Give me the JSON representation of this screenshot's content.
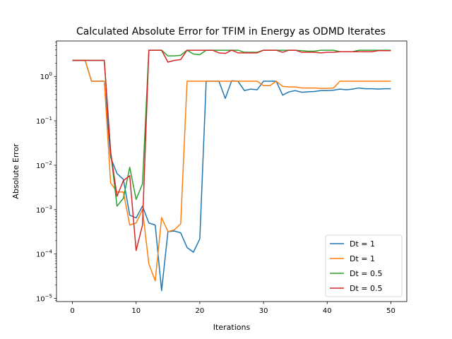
{
  "chart_data": {
    "type": "line",
    "title": "Calculated Absolute Error for TFIM in Energy as ODMD Iterates",
    "xlabel": "Iterations",
    "ylabel": "Absolute Error",
    "yscale": "log",
    "xlim": [
      -2.5,
      52.5
    ],
    "ylim": [
      8.5e-06,
      6.3
    ],
    "xticks": [
      0,
      10,
      20,
      30,
      40,
      50
    ],
    "yticks": [
      {
        "value": 1e-05,
        "base": "10",
        "exp": "−5"
      },
      {
        "value": 0.0001,
        "base": "10",
        "exp": "−4"
      },
      {
        "value": 0.001,
        "base": "10",
        "exp": "−3"
      },
      {
        "value": 0.01,
        "base": "10",
        "exp": "−2"
      },
      {
        "value": 0.1,
        "base": "10",
        "exp": "−1"
      },
      {
        "value": 1,
        "base": "10",
        "exp": "0"
      }
    ],
    "grid": false,
    "legend_position": "lower-right",
    "series": [
      {
        "name": "Dt = 1",
        "color": "#1f77b4",
        "x": [
          0,
          1,
          2,
          3,
          4,
          5,
          6,
          7,
          8,
          9,
          10,
          11,
          12,
          13,
          14,
          15,
          16,
          17,
          18,
          19,
          20,
          21,
          22,
          23,
          24,
          25,
          26,
          27,
          28,
          29,
          30,
          31,
          32,
          33,
          34,
          35,
          36,
          37,
          38,
          39,
          40,
          41,
          42,
          43,
          44,
          45,
          46,
          47,
          48,
          49,
          50
        ],
        "y": [
          2.3,
          2.3,
          2.3,
          0.78,
          0.78,
          0.78,
          0.015,
          0.0065,
          0.0048,
          0.00075,
          0.00065,
          0.0012,
          0.0005,
          0.00045,
          1.5e-05,
          0.00032,
          0.00033,
          0.0003,
          0.00014,
          0.00011,
          0.00022,
          0.78,
          0.78,
          0.78,
          0.32,
          0.8,
          0.78,
          0.48,
          0.52,
          0.5,
          0.78,
          0.78,
          0.78,
          0.38,
          0.45,
          0.48,
          0.44,
          0.45,
          0.46,
          0.48,
          0.48,
          0.49,
          0.52,
          0.5,
          0.52,
          0.55,
          0.53,
          0.53,
          0.52,
          0.53,
          0.53
        ]
      },
      {
        "name": "Dt = 1",
        "color": "#ff7f0e",
        "x": [
          0,
          1,
          2,
          3,
          4,
          5,
          6,
          7,
          8,
          9,
          10,
          11,
          12,
          13,
          14,
          15,
          16,
          17,
          18,
          19,
          20,
          21,
          22,
          23,
          24,
          25,
          26,
          27,
          28,
          29,
          30,
          31,
          32,
          33,
          34,
          35,
          36,
          37,
          38,
          39,
          40,
          41,
          42,
          43,
          44,
          45,
          46,
          47,
          48,
          49,
          50
        ],
        "y": [
          2.3,
          2.3,
          2.3,
          0.78,
          0.78,
          0.78,
          0.004,
          0.0025,
          0.0025,
          0.00045,
          0.0005,
          0.001,
          6e-05,
          2.5e-05,
          0.00066,
          0.00032,
          0.00035,
          0.00048,
          0.78,
          0.78,
          0.78,
          0.78,
          0.78,
          0.78,
          0.78,
          0.78,
          0.78,
          0.78,
          0.78,
          0.78,
          0.62,
          0.62,
          0.78,
          0.6,
          0.58,
          0.58,
          0.55,
          0.55,
          0.55,
          0.54,
          0.54,
          0.55,
          0.78,
          0.78,
          0.78,
          0.78,
          0.78,
          0.78,
          0.78,
          0.78,
          0.78
        ]
      },
      {
        "name": "Dt = 0.5",
        "color": "#2ca02c",
        "x": [
          0,
          1,
          2,
          3,
          4,
          5,
          6,
          7,
          8,
          9,
          10,
          11,
          12,
          13,
          14,
          15,
          16,
          17,
          18,
          19,
          20,
          21,
          22,
          23,
          24,
          25,
          26,
          27,
          28,
          29,
          30,
          31,
          32,
          33,
          34,
          35,
          36,
          37,
          38,
          39,
          40,
          41,
          42,
          43,
          44,
          45,
          46,
          47,
          48,
          49,
          50
        ],
        "y": [
          2.3,
          2.3,
          2.3,
          2.3,
          2.3,
          2.3,
          0.02,
          0.0012,
          0.0018,
          0.009,
          0.0017,
          0.0038,
          3.9,
          3.9,
          3.9,
          2.9,
          2.9,
          3.0,
          3.9,
          3.2,
          3.1,
          3.9,
          3.9,
          3.9,
          3.9,
          3.9,
          3.9,
          3.5,
          3.5,
          3.5,
          3.9,
          3.9,
          3.9,
          3.9,
          3.9,
          3.9,
          3.8,
          3.7,
          3.7,
          3.9,
          3.9,
          3.9,
          3.6,
          3.6,
          3.6,
          3.9,
          3.9,
          3.9,
          3.9,
          3.9,
          3.9
        ]
      },
      {
        "name": "Dt = 0.5",
        "color": "#d62728",
        "x": [
          0,
          1,
          2,
          3,
          4,
          5,
          6,
          7,
          8,
          9,
          10,
          11,
          12,
          13,
          14,
          15,
          16,
          17,
          18,
          19,
          20,
          21,
          22,
          23,
          24,
          25,
          26,
          27,
          28,
          29,
          30,
          31,
          32,
          33,
          34,
          35,
          36,
          37,
          38,
          39,
          40,
          41,
          42,
          43,
          44,
          45,
          46,
          47,
          48,
          49,
          50
        ],
        "y": [
          2.3,
          2.3,
          2.3,
          2.3,
          2.3,
          2.3,
          0.02,
          0.002,
          0.0045,
          0.0058,
          0.00012,
          0.00045,
          3.9,
          3.9,
          3.9,
          2.1,
          2.3,
          2.4,
          3.9,
          3.9,
          3.9,
          3.9,
          3.9,
          3.4,
          3.3,
          3.9,
          3.4,
          3.4,
          3.4,
          3.4,
          3.9,
          3.9,
          3.9,
          3.5,
          3.9,
          3.9,
          3.5,
          3.5,
          3.5,
          3.4,
          3.5,
          3.5,
          3.6,
          3.6,
          3.6,
          3.6,
          3.6,
          3.6,
          3.8,
          3.8,
          3.8
        ]
      }
    ]
  }
}
